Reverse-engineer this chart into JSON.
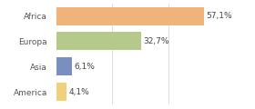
{
  "categories": [
    "Africa",
    "Europa",
    "Asia",
    "America"
  ],
  "values": [
    57.1,
    32.7,
    6.1,
    4.1
  ],
  "labels": [
    "57,1%",
    "32,7%",
    "6,1%",
    "4,1%"
  ],
  "colors": [
    "#f0b47a",
    "#b5c98a",
    "#7a8fbf",
    "#f0d07a"
  ],
  "xlim": [
    0,
    65
  ],
  "background_color": "#ffffff",
  "bar_height": 0.72,
  "label_fontsize": 6.5,
  "tick_fontsize": 6.5,
  "grid_ticks": [
    21.67,
    43.33,
    65.0
  ],
  "figsize": [
    2.8,
    1.2
  ],
  "dpi": 100
}
